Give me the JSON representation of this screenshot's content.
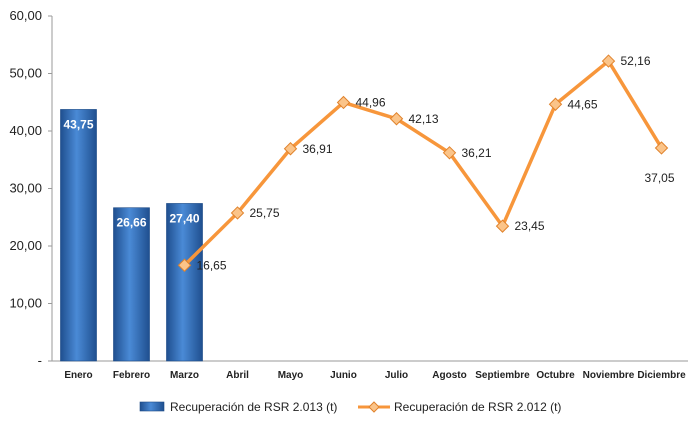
{
  "chart_data": {
    "type": "bar",
    "categories": [
      "Enero",
      "Febrero",
      "Marzo",
      "Abril",
      "Mayo",
      "Junio",
      "Julio",
      "Agosto",
      "Septiembre",
      "Octubre",
      "Noviembre",
      "Diciembre"
    ],
    "ylim": [
      0,
      60
    ],
    "yticks": [
      "-",
      "10,00",
      "20,00",
      "30,00",
      "40,00",
      "50,00",
      "60,00"
    ],
    "ytick_values": [
      0,
      10,
      20,
      30,
      40,
      50,
      60
    ],
    "grid": false,
    "legend_position": "bottom",
    "series": [
      {
        "name": "Recuperación de RSR 2.013 (t)",
        "type": "bar",
        "color": "#2e6db4",
        "values": [
          43.75,
          26.66,
          27.4,
          null,
          null,
          null,
          null,
          null,
          null,
          null,
          null,
          null
        ],
        "labels": [
          "43,75",
          "26,66",
          "27,40",
          "",
          "",
          "",
          "",
          "",
          "",
          "",
          "",
          ""
        ]
      },
      {
        "name": "Recuperación de RSR 2.012 (t)",
        "type": "line",
        "color": "#f7963b",
        "values": [
          null,
          null,
          16.65,
          25.75,
          36.91,
          44.96,
          42.13,
          36.21,
          23.45,
          44.65,
          52.16,
          37.05
        ],
        "labels": [
          "",
          "",
          "16,65",
          "25,75",
          "36,91",
          "44,96",
          "42,13",
          "36,21",
          "23,45",
          "44,65",
          "52,16",
          "37,05"
        ]
      }
    ]
  }
}
